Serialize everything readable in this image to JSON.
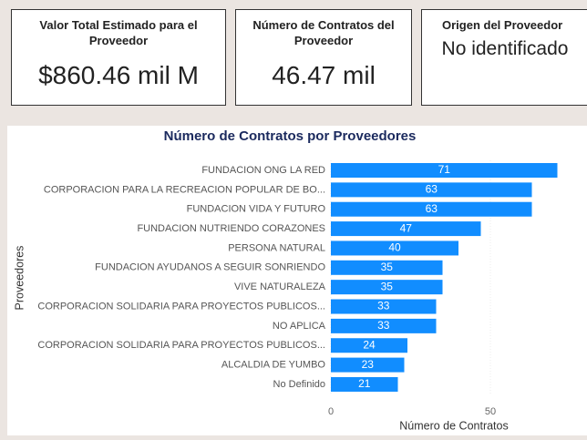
{
  "cards": [
    {
      "title": "Valor Total Estimado para el Proveedor",
      "value": "$860.46 mil M"
    },
    {
      "title": "Número de Contratos del Proveedor",
      "value": "46.47 mil"
    },
    {
      "title": "Origen del Proveedor",
      "value": "No identificado"
    }
  ],
  "chart_data": {
    "type": "bar",
    "orientation": "horizontal",
    "title": "Número de Contratos por Proveedores",
    "categories": [
      "FUNDACION ONG LA RED",
      "CORPORACION PARA LA RECREACION POPULAR DE BO...",
      "FUNDACION VIDA Y FUTURO",
      "FUNDACION NUTRIENDO CORAZONES",
      "PERSONA NATURAL",
      "FUNDACION AYUDANOS A SEGUIR SONRIENDO",
      "VIVE NATURALEZA",
      "CORPORACION SOLIDARIA PARA PROYECTOS PUBLICOS...",
      "NO APLICA",
      "CORPORACION SOLIDARIA PARA PROYECTOS PUBLICOS...",
      "ALCALDIA DE YUMBO",
      "No Definido"
    ],
    "values": [
      71,
      63,
      63,
      47,
      40,
      35,
      35,
      33,
      33,
      24,
      23,
      21
    ],
    "color": "#118dff",
    "xlim": [
      0,
      73
    ],
    "xticks": [
      0,
      50
    ],
    "x_label": "Número de Contratos",
    "y_label": "Proveedores"
  }
}
